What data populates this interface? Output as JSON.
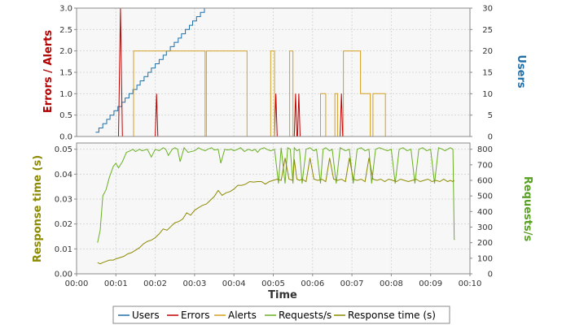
{
  "colors": {
    "users": "#1f6fa8",
    "errors": "#c00000",
    "alerts": "#d4a020",
    "requests": "#6ab023",
    "response": "#8c8a00",
    "grid": "#d9d9d9",
    "plot_bg": "#f7f7f7",
    "axis_users": "#1f6fa8",
    "axis_errors": "#b00000",
    "axis_requests": "#5aa025",
    "axis_response": "#8c8a00"
  },
  "chart_data": [
    {
      "type": "line",
      "panel": "top",
      "title": "",
      "ylabel_left": "Errors / Alerts",
      "ylabel_right": "Users",
      "xlim": [
        0,
        600
      ],
      "ylim_left": [
        0,
        3
      ],
      "ylim_right": [
        0,
        30
      ],
      "x_ticks": [
        0,
        60,
        120,
        180,
        240,
        300,
        360,
        420,
        480,
        540,
        600
      ],
      "y_ticks_left": [
        0,
        0.5,
        1,
        1.5,
        2,
        2.5,
        3
      ],
      "y_tick_labels_left": [
        "0.0",
        "0.5",
        "1.0",
        "1.5",
        "2.0",
        "2.5",
        "3.0"
      ],
      "y_ticks_right": [
        0,
        5,
        10,
        15,
        20,
        25,
        30
      ],
      "grid": true,
      "series": [
        {
          "name": "Users",
          "axis": "right",
          "step": true,
          "x": [
            29,
            34,
            40,
            46,
            51,
            57,
            63,
            69,
            74,
            80,
            86,
            92,
            97,
            103,
            109,
            114,
            120,
            126,
            132,
            137,
            143,
            149,
            155,
            160,
            166,
            172,
            177,
            183,
            189,
            195,
            200,
            206,
            212,
            218,
            223,
            229,
            235,
            240,
            246,
            252,
            258,
            263,
            269,
            275,
            281,
            286,
            292,
            298,
            303,
            309,
            576
          ],
          "y": [
            1,
            2,
            3,
            4,
            5,
            6,
            7,
            8,
            9,
            10,
            11,
            12,
            13,
            14,
            15,
            16,
            17,
            18,
            19,
            20,
            21,
            22,
            23,
            24,
            25,
            26,
            27,
            28,
            29,
            30,
            30,
            30,
            30,
            30,
            30,
            30,
            30,
            30,
            30,
            30,
            30,
            30,
            30,
            30,
            30,
            30,
            30,
            30,
            30,
            30,
            30
          ]
        },
        {
          "name": "Errors",
          "axis": "left",
          "x": [
            29,
            64,
            67,
            70,
            120,
            122,
            124,
            302,
            304,
            306,
            332,
            334,
            336,
            337,
            339,
            341,
            402,
            404,
            406,
            576
          ],
          "y": [
            0,
            0,
            3,
            0,
            0,
            1,
            0,
            0,
            1,
            0,
            0,
            1,
            0,
            0,
            1,
            0,
            0,
            1,
            0,
            0
          ]
        },
        {
          "name": "Alerts",
          "axis": "left",
          "x": [
            29,
            87,
            87,
            196,
            196,
            198,
            198,
            260,
            260,
            296,
            296,
            302,
            302,
            325,
            325,
            330,
            330,
            372,
            372,
            380,
            380,
            394,
            394,
            398,
            398,
            407,
            407,
            433,
            433,
            448,
            448,
            452,
            452,
            471,
            471,
            486,
            486,
            576
          ],
          "y": [
            0,
            0,
            2,
            2,
            0,
            0,
            2,
            2,
            0,
            0,
            2,
            2,
            0,
            0,
            2,
            2,
            0,
            0,
            1,
            1,
            0,
            0,
            1,
            1,
            0,
            0,
            2,
            2,
            1,
            1,
            0,
            0,
            1,
            1,
            0,
            0,
            0,
            0
          ]
        }
      ]
    },
    {
      "type": "line",
      "panel": "bottom",
      "title": "",
      "xlabel": "Time",
      "ylabel_left": "Response time (s)",
      "ylabel_right": "Requests/s",
      "xlim": [
        0,
        600
      ],
      "ylim_left": [
        0,
        0.0525
      ],
      "ylim_right": [
        0,
        840
      ],
      "x_ticks": [
        0,
        60,
        120,
        180,
        240,
        300,
        360,
        420,
        480,
        540,
        600
      ],
      "x_tick_labels": [
        "00:00",
        "00:01",
        "00:02",
        "00:03",
        "00:04",
        "00:05",
        "00:06",
        "00:07",
        "00:08",
        "00:09",
        "00:10"
      ],
      "y_ticks_left": [
        0,
        0.01,
        0.02,
        0.03,
        0.04,
        0.05
      ],
      "y_tick_labels_left": [
        "0.00",
        "0.01",
        "0.02",
        "0.03",
        "0.04",
        "0.05"
      ],
      "y_ticks_right": [
        0,
        100,
        200,
        300,
        400,
        500,
        600,
        700,
        800
      ],
      "grid": true,
      "series": [
        {
          "name": "Requests/s",
          "axis": "right",
          "x": [
            32,
            36,
            40,
            45,
            50,
            56,
            60,
            64,
            70,
            76,
            82,
            86,
            90,
            96,
            100,
            108,
            114,
            120,
            126,
            132,
            136,
            140,
            146,
            150,
            154,
            158,
            164,
            170,
            180,
            186,
            190,
            196,
            200,
            206,
            210,
            216,
            220,
            226,
            230,
            236,
            240,
            246,
            250,
            256,
            262,
            268,
            272,
            276,
            280,
            286,
            290,
            296,
            302,
            308,
            312,
            318,
            322,
            326,
            330,
            332,
            336,
            340,
            344,
            350,
            356,
            362,
            366,
            372,
            376,
            380,
            386,
            390,
            396,
            402,
            406,
            410,
            416,
            422,
            428,
            434,
            440,
            446,
            450,
            456,
            462,
            468,
            474,
            480,
            486,
            492,
            498,
            504,
            510,
            516,
            522,
            528,
            534,
            540,
            546,
            552,
            558,
            562,
            566,
            570,
            574,
            576,
            577
          ],
          "y": [
            200,
            280,
            500,
            540,
            620,
            690,
            710,
            680,
            720,
            780,
            790,
            800,
            785,
            800,
            790,
            800,
            750,
            800,
            790,
            810,
            800,
            760,
            800,
            810,
            800,
            720,
            810,
            780,
            790,
            810,
            800,
            790,
            800,
            810,
            795,
            800,
            710,
            800,
            795,
            800,
            790,
            800,
            810,
            785,
            800,
            790,
            800,
            780,
            800,
            810,
            800,
            790,
            800,
            580,
            810,
            580,
            810,
            800,
            580,
            810,
            790,
            800,
            580,
            800,
            810,
            790,
            800,
            580,
            800,
            810,
            790,
            800,
            580,
            810,
            800,
            790,
            800,
            580,
            800,
            810,
            790,
            800,
            580,
            800,
            810,
            800,
            790,
            800,
            580,
            800,
            810,
            790,
            800,
            580,
            800,
            810,
            790,
            800,
            580,
            810,
            800,
            790,
            800,
            810,
            800,
            220,
            220
          ]
        },
        {
          "name": "Response time (s)",
          "axis": "left",
          "x": [
            32,
            36,
            40,
            45,
            50,
            56,
            60,
            66,
            72,
            78,
            84,
            90,
            96,
            102,
            108,
            114,
            120,
            126,
            132,
            138,
            144,
            150,
            156,
            162,
            168,
            174,
            180,
            186,
            192,
            198,
            204,
            210,
            216,
            222,
            228,
            234,
            240,
            246,
            252,
            258,
            264,
            270,
            276,
            282,
            288,
            294,
            300,
            306,
            312,
            318,
            324,
            330,
            332,
            336,
            340,
            344,
            350,
            356,
            362,
            368,
            374,
            380,
            386,
            392,
            398,
            404,
            410,
            416,
            422,
            428,
            434,
            440,
            446,
            452,
            458,
            464,
            470,
            476,
            482,
            488,
            494,
            500,
            506,
            512,
            518,
            524,
            530,
            536,
            542,
            548,
            554,
            560,
            566,
            570,
            574,
            576
          ],
          "y": [
            0.0045,
            0.004,
            0.0045,
            0.005,
            0.0055,
            0.0055,
            0.006,
            0.0065,
            0.007,
            0.008,
            0.0085,
            0.0095,
            0.0105,
            0.012,
            0.013,
            0.0135,
            0.0145,
            0.016,
            0.018,
            0.0175,
            0.019,
            0.0205,
            0.021,
            0.022,
            0.0245,
            0.0235,
            0.0255,
            0.0265,
            0.0275,
            0.028,
            0.0295,
            0.031,
            0.0335,
            0.0315,
            0.0325,
            0.033,
            0.034,
            0.0355,
            0.0355,
            0.036,
            0.037,
            0.0368,
            0.037,
            0.037,
            0.036,
            0.037,
            0.0375,
            0.038,
            0.0375,
            0.0465,
            0.038,
            0.0375,
            0.046,
            0.038,
            0.0375,
            0.038,
            0.037,
            0.0465,
            0.038,
            0.0375,
            0.038,
            0.037,
            0.0465,
            0.038,
            0.0375,
            0.038,
            0.037,
            0.0465,
            0.038,
            0.0375,
            0.038,
            0.037,
            0.0465,
            0.038,
            0.0375,
            0.038,
            0.037,
            0.038,
            0.0375,
            0.037,
            0.038,
            0.0375,
            0.037,
            0.0375,
            0.038,
            0.037,
            0.0375,
            0.038,
            0.037,
            0.0375,
            0.037,
            0.038,
            0.037,
            0.0375,
            0.037,
            0.0375
          ]
        }
      ]
    }
  ],
  "legend": [
    {
      "label": "Users",
      "color": "#1f6fa8"
    },
    {
      "label": "Errors",
      "color": "#c00000"
    },
    {
      "label": "Alerts",
      "color": "#d4a020"
    },
    {
      "label": "Requests/s",
      "color": "#6ab023"
    },
    {
      "label": "Response time (s)",
      "color": "#8c8a00"
    }
  ]
}
